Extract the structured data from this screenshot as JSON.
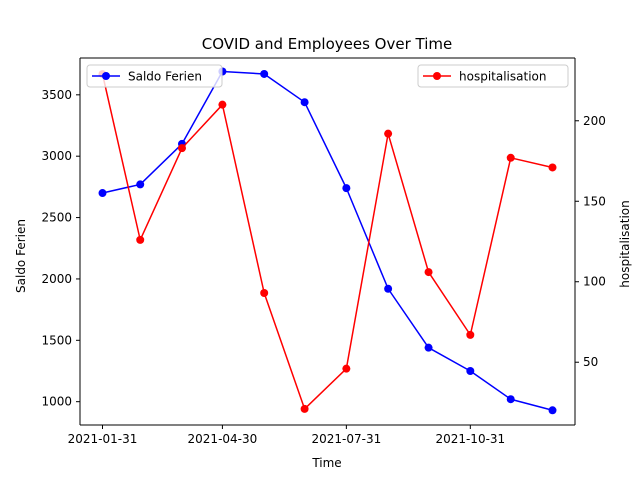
{
  "chart_data": {
    "type": "line",
    "title": "COVID and Employees Over Time",
    "xlabel": "Time",
    "x": [
      "2021-01-31",
      "2021-02-28",
      "2021-03-31",
      "2021-04-30",
      "2021-05-31",
      "2021-06-30",
      "2021-07-31",
      "2021-08-31",
      "2021-09-30",
      "2021-10-31",
      "2021-11-30",
      "2021-12-31"
    ],
    "x_ticks": [
      "2021-01-31",
      "2021-04-30",
      "2021-07-31",
      "2021-10-31"
    ],
    "y_left": {
      "label": "Saldo Ferien",
      "color": "#0000ff",
      "ylim": [
        810,
        3800
      ],
      "ticks": [
        1000,
        1500,
        2000,
        2500,
        3000,
        3500
      ]
    },
    "y_right": {
      "label": "hospitalisation",
      "color": "#ff0000",
      "ylim": [
        11,
        239
      ],
      "ticks": [
        50,
        100,
        150,
        200
      ]
    },
    "series": [
      {
        "name": "Saldo Ferien",
        "axis": "left",
        "color": "#0000ff",
        "marker": "circle",
        "legend": "upper left",
        "values": [
          2700,
          2770,
          3100,
          3690,
          3670,
          3440,
          2740,
          1920,
          1440,
          1250,
          1020,
          930
        ]
      },
      {
        "name": "hospitalisation",
        "axis": "right",
        "color": "#ff0000",
        "marker": "circle",
        "legend": "upper right",
        "values": [
          229,
          126,
          183,
          210,
          93,
          21,
          46,
          192,
          106,
          67,
          177,
          171
        ]
      }
    ],
    "grid": false
  }
}
